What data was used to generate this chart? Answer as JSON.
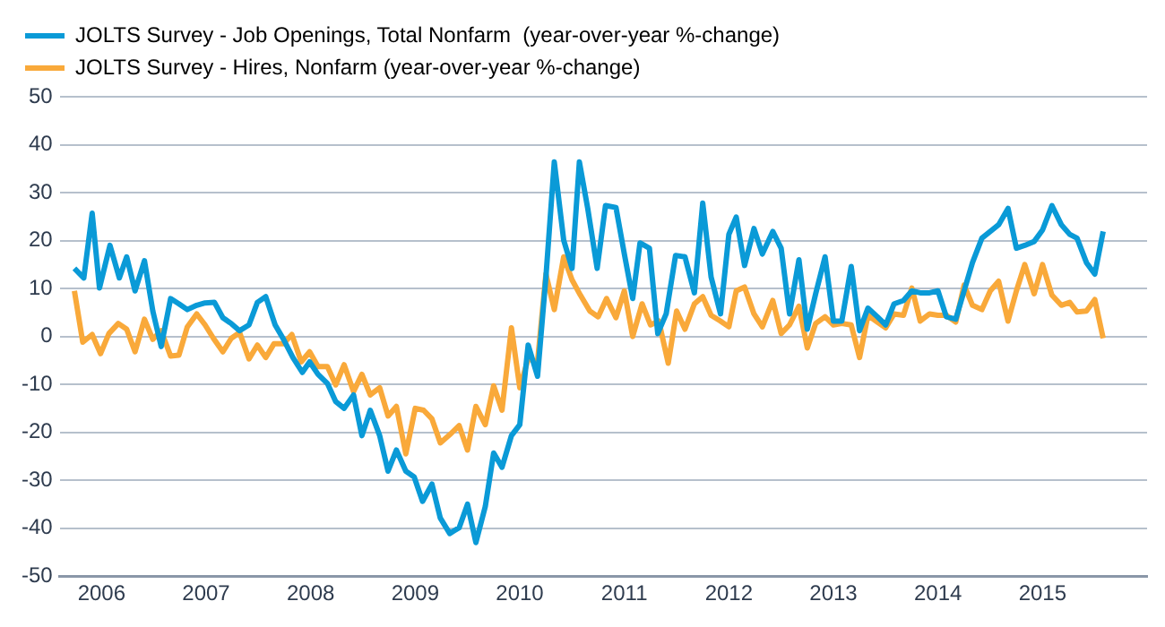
{
  "chart_data": {
    "type": "line",
    "xlim": [
      2005.6,
      2016.0
    ],
    "xticks": [
      2006,
      2007,
      2008,
      2009,
      2010,
      2011,
      2012,
      2013,
      2014,
      2015
    ],
    "ylim": [
      -50,
      50
    ],
    "yticks": [
      -50,
      -40,
      -30,
      -20,
      -10,
      0,
      10,
      20,
      30,
      40,
      50
    ],
    "grid": "y",
    "legend": "top left",
    "marker": "none",
    "line_style": "solid",
    "series": [
      {
        "name": "JOLTS Survey - Job Openings, Total Nonfarm  (year-over-year %-change)",
        "color": "#0a9ad7",
        "x": [
          2005.74,
          2005.83,
          2005.91,
          2005.98,
          2006.08,
          2006.17,
          2006.24,
          2006.32,
          2006.41,
          2006.49,
          2006.57,
          2006.66,
          2006.74,
          2006.82,
          2006.91,
          2006.99,
          2007.08,
          2007.16,
          2007.24,
          2007.32,
          2007.41,
          2007.49,
          2007.57,
          2007.66,
          2007.74,
          2007.83,
          2007.92,
          2007.99,
          2008.07,
          2008.16,
          2008.24,
          2008.32,
          2008.41,
          2008.49,
          2008.57,
          2008.66,
          2008.74,
          2008.82,
          2008.91,
          2008.99,
          2009.07,
          2009.16,
          2009.24,
          2009.33,
          2009.42,
          2009.5,
          2009.58,
          2009.67,
          2009.75,
          2009.83,
          2009.92,
          2010.0,
          2010.08,
          2010.17,
          2010.25,
          2010.33,
          2010.42,
          2010.5,
          2010.57,
          2010.65,
          2010.74,
          2010.82,
          2010.92,
          2011.0,
          2011.08,
          2011.15,
          2011.24,
          2011.32,
          2011.4,
          2011.49,
          2011.58,
          2011.67,
          2011.75,
          2011.83,
          2011.92,
          2012.0,
          2012.07,
          2012.15,
          2012.24,
          2012.32,
          2012.42,
          2012.5,
          2012.58,
          2012.67,
          2012.75,
          2012.83,
          2012.92,
          2013.0,
          2013.08,
          2013.17,
          2013.25,
          2013.33,
          2013.42,
          2013.5,
          2013.58,
          2013.67,
          2013.75,
          2013.83,
          2013.92,
          2014.0,
          2014.08,
          2014.17,
          2014.25,
          2014.33,
          2014.42,
          2014.5,
          2014.58,
          2014.67,
          2014.75,
          2014.83,
          2014.92,
          2015.0,
          2015.09,
          2015.18,
          2015.26,
          2015.33,
          2015.42,
          2015.5,
          2015.58
        ],
        "values": [
          14.2,
          12.2,
          25.7,
          10.1,
          19.0,
          12.2,
          16.6,
          9.5,
          15.8,
          5.3,
          -2.1,
          7.9,
          6.8,
          5.6,
          6.5,
          7.0,
          7.1,
          3.9,
          2.7,
          1.2,
          2.4,
          7.1,
          8.3,
          2.4,
          -0.6,
          -4.4,
          -7.5,
          -5.3,
          -7.9,
          -9.8,
          -13.6,
          -15.0,
          -12.2,
          -20.7,
          -15.4,
          -20.7,
          -28.1,
          -23.7,
          -28.1,
          -29.3,
          -34.4,
          -30.8,
          -37.9,
          -41.1,
          -39.9,
          -35.0,
          -43.0,
          -35.5,
          -24.3,
          -27.3,
          -20.7,
          -18.4,
          -1.8,
          -8.3,
          12.4,
          36.4,
          20.1,
          14.2,
          36.4,
          26.7,
          14.2,
          27.3,
          26.9,
          17.2,
          7.9,
          19.5,
          18.4,
          0.6,
          4.7,
          16.9,
          16.6,
          9.1,
          27.8,
          12.4,
          4.7,
          21.3,
          24.9,
          14.8,
          22.5,
          17.2,
          21.9,
          18.4,
          4.7,
          16.0,
          1.5,
          8.9,
          16.6,
          3.2,
          3.2,
          14.6,
          1.2,
          5.9,
          4.1,
          2.4,
          6.8,
          7.5,
          9.5,
          9.1,
          9.1,
          9.5,
          4.1,
          3.6,
          9.5,
          15.4,
          20.5,
          21.9,
          23.3,
          26.7,
          18.4,
          19.0,
          19.8,
          22.2,
          27.3,
          23.3,
          21.3,
          20.5,
          15.4,
          13.0,
          21.9
        ]
      },
      {
        "name": "JOLTS Survey - Hires, Nonfarm (year-over-year %-change)",
        "color": "#f9a93a",
        "x": [
          2005.74,
          2005.82,
          2005.91,
          2005.99,
          2006.07,
          2006.16,
          2006.24,
          2006.32,
          2006.41,
          2006.49,
          2006.57,
          2006.66,
          2006.74,
          2006.82,
          2006.91,
          2006.99,
          2007.07,
          2007.16,
          2007.24,
          2007.32,
          2007.41,
          2007.49,
          2007.57,
          2007.65,
          2007.74,
          2007.82,
          2007.91,
          2007.99,
          2008.07,
          2008.16,
          2008.24,
          2008.32,
          2008.41,
          2008.49,
          2008.57,
          2008.66,
          2008.74,
          2008.82,
          2008.91,
          2009.0,
          2009.08,
          2009.16,
          2009.24,
          2009.33,
          2009.42,
          2009.5,
          2009.58,
          2009.67,
          2009.75,
          2009.83,
          2009.92,
          2010.0,
          2010.08,
          2010.17,
          2010.25,
          2010.33,
          2010.42,
          2010.5,
          2010.58,
          2010.67,
          2010.75,
          2010.83,
          2010.92,
          2011.0,
          2011.08,
          2011.17,
          2011.25,
          2011.33,
          2011.42,
          2011.5,
          2011.58,
          2011.67,
          2011.75,
          2011.83,
          2011.92,
          2012.0,
          2012.07,
          2012.15,
          2012.24,
          2012.32,
          2012.42,
          2012.5,
          2012.58,
          2012.67,
          2012.75,
          2012.83,
          2012.92,
          2013.0,
          2013.08,
          2013.17,
          2013.25,
          2013.33,
          2013.42,
          2013.5,
          2013.58,
          2013.67,
          2013.75,
          2013.83,
          2013.92,
          2014.0,
          2014.08,
          2014.17,
          2014.25,
          2014.33,
          2014.42,
          2014.5,
          2014.58,
          2014.67,
          2014.75,
          2014.83,
          2014.92,
          2015.0,
          2015.09,
          2015.18,
          2015.26,
          2015.33,
          2015.42,
          2015.5,
          2015.58
        ],
        "values": [
          9.5,
          -1.2,
          0.4,
          -3.6,
          0.6,
          2.7,
          1.5,
          -3.2,
          3.6,
          -0.6,
          1.2,
          -4.1,
          -3.9,
          2.0,
          4.7,
          2.4,
          -0.4,
          -3.2,
          -0.4,
          0.8,
          -4.7,
          -1.8,
          -4.4,
          -1.5,
          -1.5,
          0.4,
          -5.3,
          -3.2,
          -6.3,
          -6.3,
          -10.1,
          -5.9,
          -11.5,
          -7.9,
          -12.2,
          -10.7,
          -16.6,
          -14.6,
          -24.5,
          -15.0,
          -15.4,
          -17.2,
          -22.2,
          -20.5,
          -18.6,
          -23.7,
          -14.6,
          -18.4,
          -10.3,
          -15.4,
          1.8,
          -10.7,
          -4.7,
          -5.3,
          13.0,
          5.6,
          16.6,
          11.8,
          8.6,
          5.3,
          4.1,
          7.9,
          3.9,
          9.5,
          0.0,
          6.8,
          2.4,
          3.2,
          -5.6,
          5.3,
          1.5,
          6.8,
          8.3,
          4.4,
          3.2,
          2.0,
          9.5,
          10.3,
          4.7,
          2.0,
          7.5,
          0.6,
          2.4,
          6.3,
          -2.4,
          2.7,
          4.1,
          2.4,
          2.7,
          2.4,
          -4.4,
          4.4,
          3.0,
          1.8,
          4.7,
          4.4,
          10.1,
          3.2,
          4.7,
          4.4,
          4.4,
          3.0,
          10.7,
          6.5,
          5.6,
          9.5,
          11.5,
          3.2,
          9.5,
          15.0,
          8.9,
          15.0,
          8.6,
          6.5,
          7.1,
          5.1,
          5.3,
          7.7,
          -0.4
        ]
      }
    ]
  }
}
